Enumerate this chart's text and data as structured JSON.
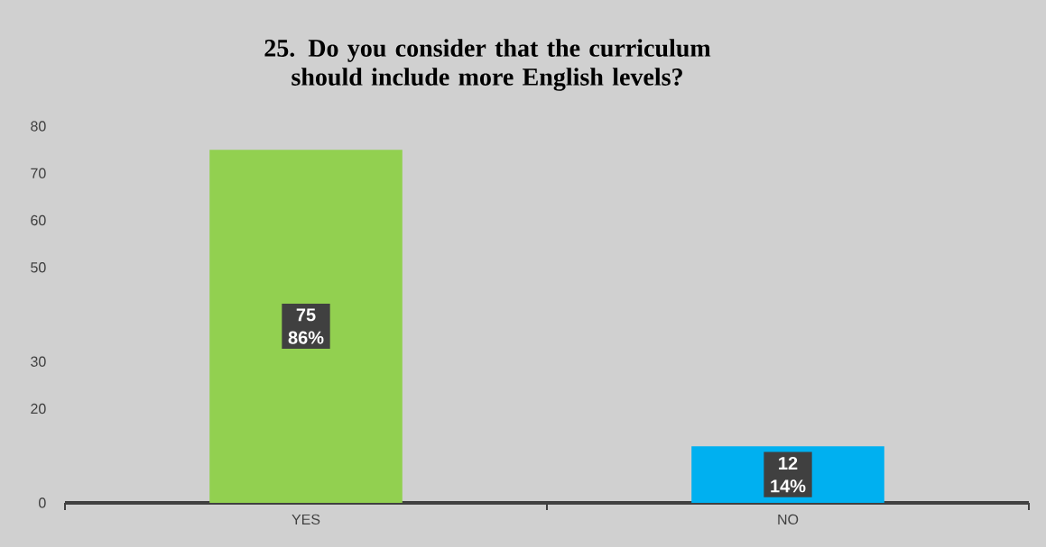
{
  "chart_data": {
    "type": "bar",
    "title": "25. Do you consider that the curriculum should include more English levels?",
    "categories": [
      "YES",
      "NO"
    ],
    "values": [
      75,
      12
    ],
    "colors": [
      "#92d050",
      "#00b0f0"
    ],
    "value_labels": [
      "75 86%",
      "12 14%"
    ],
    "ylim": [
      0,
      80
    ],
    "yticks": [
      0,
      20,
      30,
      50,
      60,
      70,
      80
    ],
    "grid": false,
    "legend": false
  }
}
